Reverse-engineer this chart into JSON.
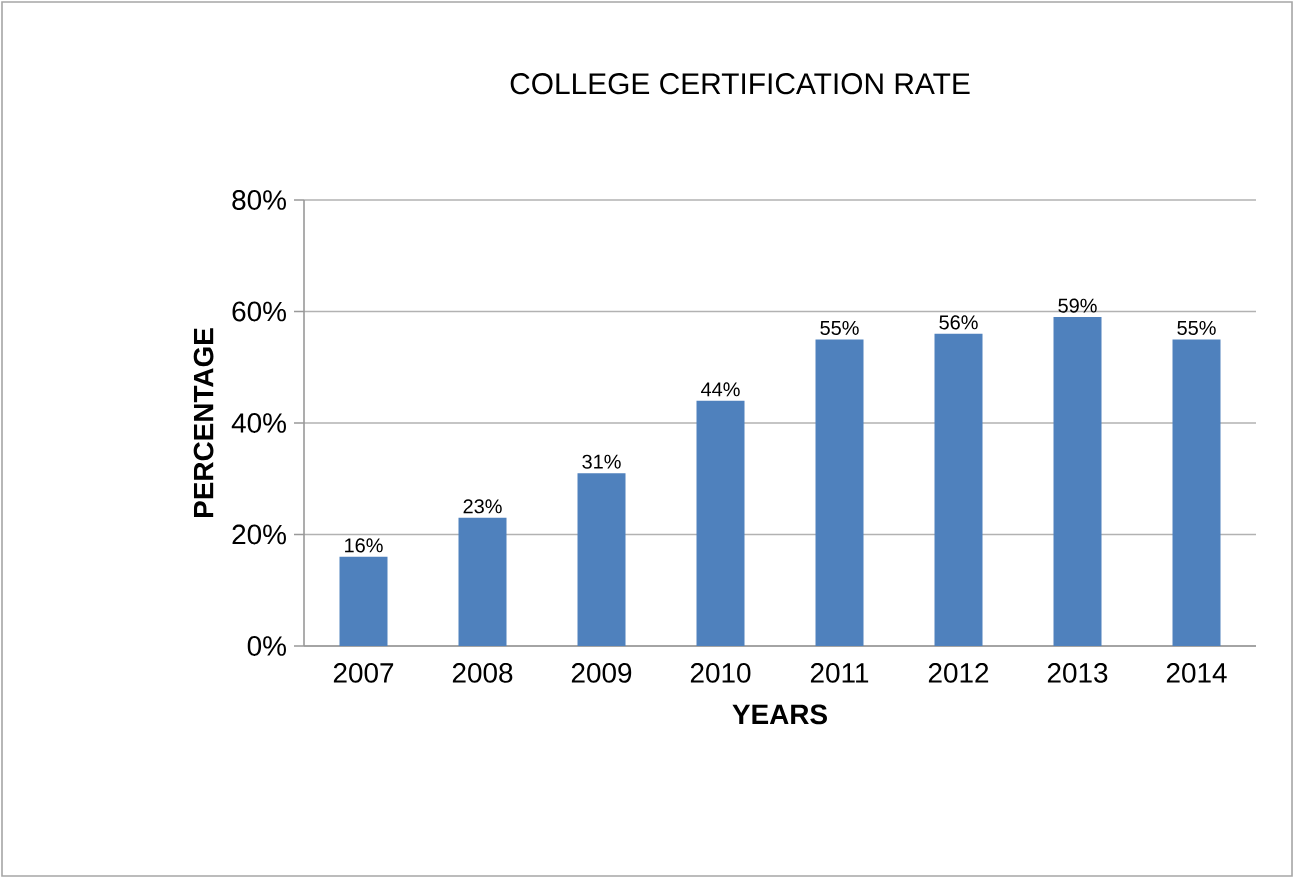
{
  "chart_data": {
    "type": "bar",
    "title": "COLLEGE CERTIFICATION RATE",
    "xlabel": "YEARS",
    "ylabel": "PERCENTAGE",
    "categories": [
      "2007",
      "2008",
      "2009",
      "2010",
      "2011",
      "2012",
      "2013",
      "2014"
    ],
    "values": [
      16,
      23,
      31,
      44,
      55,
      56,
      59,
      55
    ],
    "value_labels": [
      "16%",
      "23%",
      "31%",
      "44%",
      "55%",
      "56%",
      "59%",
      "55%"
    ],
    "color": "#4f81bd",
    "ylim": [
      0,
      80
    ],
    "yticks": [
      {
        "value": 0,
        "label": "0%"
      },
      {
        "value": 20,
        "label": "20%"
      },
      {
        "value": 40,
        "label": "40%"
      },
      {
        "value": 60,
        "label": "60%"
      },
      {
        "value": 80,
        "label": "80%"
      }
    ],
    "grid": "y"
  }
}
